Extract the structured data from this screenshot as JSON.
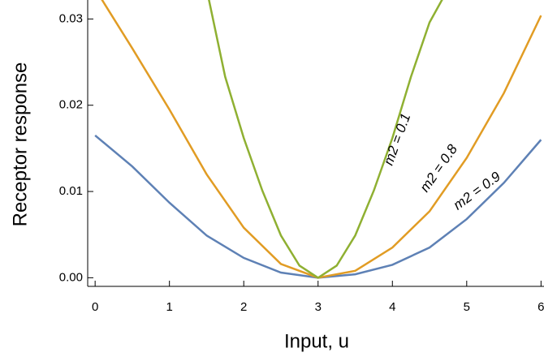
{
  "chart_data": {
    "type": "line",
    "xlabel": "Input, u",
    "ylabel": "Receptor response",
    "xlim": [
      -0.1,
      6.04
    ],
    "ylim": [
      -0.001,
      0.0322
    ],
    "xticks": [
      0,
      1,
      2,
      3,
      4,
      5,
      6
    ],
    "yticks": [
      {
        "value": 0,
        "label": "0.00"
      },
      0.01,
      0.02,
      0.03
    ],
    "series": [
      {
        "name": "m2 = 0.9",
        "color": "#5e81b5",
        "x": [
          0,
          0.5,
          1,
          1.5,
          2,
          2.5,
          3,
          3.5,
          4,
          4.5,
          5,
          5.5,
          6
        ],
        "values": [
          0.0165,
          0.0129,
          0.0087,
          0.0049,
          0.0023,
          0.0006,
          0,
          0.0004,
          0.0015,
          0.0035,
          0.0068,
          0.011,
          0.016
        ]
      },
      {
        "name": "m2 = 0.8",
        "color": "#e19c24",
        "x": [
          0,
          0.5,
          1,
          1.5,
          2,
          2.5,
          3,
          3.5,
          4,
          4.5,
          5,
          5.5,
          6
        ],
        "values": [
          0.0335,
          0.0266,
          0.0195,
          0.012,
          0.0058,
          0.0016,
          0,
          0.0008,
          0.0035,
          0.0077,
          0.0139,
          0.0214,
          0.0304
        ]
      },
      {
        "name": "m2 = 0.1",
        "color": "#8fb032",
        "x": [
          1.5,
          1.75,
          2,
          2.25,
          2.5,
          2.75,
          3,
          3.25,
          3.5,
          3.75,
          4,
          4.25,
          4.5,
          4.75
        ],
        "values": [
          0.0335,
          0.0233,
          0.0162,
          0.0101,
          0.0049,
          0.0014,
          0,
          0.0014,
          0.0049,
          0.0101,
          0.0162,
          0.0233,
          0.0296,
          0.0335
        ]
      }
    ]
  }
}
